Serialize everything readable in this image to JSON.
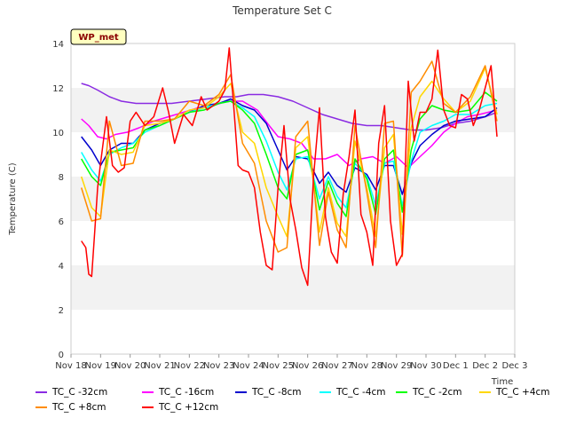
{
  "chart_data": {
    "type": "line",
    "title": "Temperature Set C",
    "xlabel": "Time",
    "ylabel": "Temperature (C)",
    "ylim": [
      0,
      14
    ],
    "xlim": [
      0,
      15
    ],
    "yticks": [
      0,
      2,
      4,
      6,
      8,
      10,
      12,
      14
    ],
    "xtick_labels": [
      "Nov 18",
      "Nov 19",
      "Nov 20",
      "Nov 21",
      "Nov 22",
      "Nov 23",
      "Nov 24",
      "Nov 25",
      "Nov 26",
      "Nov 27",
      "Nov 28",
      "Nov 29",
      "Nov 30",
      "Dec 1",
      "Dec 2",
      "Dec 3"
    ],
    "grid": "horizontal bands",
    "legend_placement": "bottom",
    "annotation": "WP_met",
    "series": [
      {
        "name": "TC_C -32cm",
        "color": "#8a2be2",
        "x": [
          0.35,
          0.6,
          0.9,
          1.3,
          1.7,
          2.2,
          2.8,
          3.4,
          4,
          4.6,
          5.2,
          5.6,
          6,
          6.5,
          7,
          7.5,
          8,
          8.5,
          9,
          9.5,
          10,
          10.5,
          11,
          11.5,
          12,
          12.5,
          13,
          13.5,
          14,
          14.4
        ],
        "y": [
          12.2,
          12.1,
          11.9,
          11.6,
          11.4,
          11.3,
          11.3,
          11.3,
          11.4,
          11.5,
          11.6,
          11.6,
          11.7,
          11.7,
          11.6,
          11.4,
          11.1,
          10.8,
          10.6,
          10.4,
          10.3,
          10.3,
          10.2,
          10.1,
          10.1,
          10.2,
          10.4,
          10.5,
          10.7,
          10.9
        ]
      },
      {
        "name": "TC_C -16cm",
        "color": "#ff00ff",
        "x": [
          0.35,
          0.6,
          0.9,
          1.2,
          1.5,
          1.9,
          2.3,
          2.8,
          3.3,
          3.8,
          4.3,
          4.8,
          5.3,
          5.8,
          6.3,
          6.7,
          7,
          7.4,
          7.8,
          8.2,
          8.6,
          9,
          9.4,
          9.8,
          10.2,
          10.6,
          11,
          11.4,
          11.8,
          12.2,
          12.6,
          13,
          13.4,
          13.8,
          14.4
        ],
        "y": [
          10.6,
          10.3,
          9.8,
          9.7,
          9.9,
          10,
          10.2,
          10.5,
          10.7,
          10.9,
          11.1,
          11.2,
          11.4,
          11.4,
          11,
          10.3,
          9.8,
          9.7,
          9.5,
          8.8,
          8.8,
          9,
          8.5,
          8.8,
          8.9,
          8.6,
          8.9,
          8.4,
          8.9,
          9.4,
          10,
          10.4,
          10.7,
          10.8,
          11
        ]
      },
      {
        "name": "TC_C -8cm",
        "color": "#0000cd",
        "x": [
          0.35,
          0.7,
          1,
          1.3,
          1.7,
          2.1,
          2.5,
          3,
          3.5,
          4,
          4.5,
          5,
          5.4,
          5.8,
          6.2,
          6.6,
          7,
          7.3,
          7.6,
          8,
          8.4,
          8.7,
          9,
          9.3,
          9.6,
          10,
          10.3,
          10.6,
          10.9,
          11.2,
          11.5,
          11.8,
          12.2,
          12.6,
          13,
          13.5,
          14,
          14.4
        ],
        "y": [
          9.8,
          9.2,
          8.5,
          9.2,
          9.5,
          9.5,
          10.1,
          10.4,
          10.6,
          10.9,
          11.2,
          11.3,
          11.5,
          11.2,
          11,
          10.4,
          9.2,
          8.3,
          8.9,
          8.8,
          7.7,
          8.2,
          7.6,
          7.3,
          8.4,
          8.1,
          7.4,
          8.5,
          8.5,
          7.2,
          8.6,
          9.4,
          9.9,
          10.3,
          10.5,
          10.6,
          10.7,
          11.1
        ]
      },
      {
        "name": "TC_C -4cm",
        "color": "#00ffff",
        "x": [
          0.35,
          0.7,
          1,
          1.3,
          1.7,
          2.1,
          2.5,
          3,
          3.5,
          4,
          4.5,
          5,
          5.4,
          5.8,
          6.2,
          6.6,
          7,
          7.3,
          7.6,
          8,
          8.4,
          8.7,
          9,
          9.3,
          9.6,
          10,
          10.3,
          10.6,
          10.9,
          11.2,
          11.5,
          11.8,
          12.2,
          12.6,
          13,
          13.5,
          14,
          14.4
        ],
        "y": [
          9.1,
          8.3,
          7.8,
          9,
          9.3,
          9.5,
          10,
          10.3,
          10.6,
          10.9,
          11.1,
          11.3,
          11.4,
          11.1,
          10.7,
          9.6,
          8.2,
          7.4,
          8.8,
          8.9,
          7,
          8,
          7.1,
          6.6,
          8.6,
          8,
          6.7,
          8.6,
          8.7,
          6.7,
          8.7,
          10,
          10.3,
          10.5,
          10.8,
          10.8,
          11.2,
          11.3
        ]
      },
      {
        "name": "TC_C -2cm",
        "color": "#00ff00",
        "x": [
          0.35,
          0.7,
          1,
          1.3,
          1.7,
          2.1,
          2.5,
          3,
          3.5,
          4,
          4.5,
          5,
          5.4,
          5.8,
          6.2,
          6.6,
          7,
          7.3,
          7.6,
          8,
          8.4,
          8.7,
          9,
          9.3,
          9.6,
          10,
          10.3,
          10.6,
          10.9,
          11.2,
          11.5,
          11.8,
          12.2,
          12.6,
          13,
          13.5,
          14,
          14.4
        ],
        "y": [
          8.8,
          8,
          7.6,
          9.1,
          9.2,
          9.3,
          10.1,
          10.3,
          10.6,
          10.9,
          11,
          11.3,
          11.4,
          11,
          10.4,
          9,
          7.5,
          7,
          9,
          9.2,
          6.5,
          7.8,
          6.8,
          6.2,
          8.8,
          7.9,
          6.3,
          8.8,
          9.2,
          6.4,
          9.2,
          10.6,
          11.2,
          11,
          10.9,
          11,
          11.8,
          11.4
        ]
      },
      {
        "name": "TC_C +4cm",
        "color": "#ffd700",
        "x": [
          0.35,
          0.7,
          1,
          1.3,
          1.7,
          2.1,
          2.5,
          3,
          3.5,
          4,
          4.5,
          5,
          5.4,
          5.8,
          6.2,
          6.6,
          7,
          7.3,
          7.6,
          8,
          8.4,
          8.7,
          9,
          9.3,
          9.6,
          10,
          10.3,
          10.6,
          10.9,
          11.2,
          11.5,
          11.8,
          12.2,
          12.6,
          13,
          13.5,
          14,
          14.4
        ],
        "y": [
          8,
          6.6,
          6.2,
          9.2,
          9,
          9.1,
          10.3,
          10.4,
          10.6,
          11,
          11.1,
          11.6,
          12.2,
          10,
          9.5,
          7.5,
          6.2,
          5.3,
          9.3,
          9.8,
          5.5,
          7.5,
          5.9,
          5.3,
          9.6,
          7.5,
          5.3,
          9.3,
          9.9,
          5.4,
          10.2,
          11.6,
          12.3,
          11.5,
          10.9,
          11.4,
          12.9,
          10.8
        ]
      },
      {
        "name": "TC_C +8cm",
        "color": "#ff8c00",
        "x": [
          0.35,
          0.7,
          1,
          1.3,
          1.7,
          2.1,
          2.5,
          3,
          3.5,
          4,
          4.5,
          5,
          5.4,
          5.8,
          6.2,
          6.6,
          7,
          7.3,
          7.6,
          8,
          8.4,
          8.7,
          9,
          9.3,
          9.6,
          10,
          10.3,
          10.6,
          10.9,
          11.2,
          11.5,
          11.8,
          12.2,
          12.6,
          13,
          13.5,
          14,
          14.4
        ],
        "y": [
          7.5,
          6,
          6.1,
          10.5,
          8.5,
          8.6,
          10.5,
          10.5,
          10.6,
          11.4,
          11.2,
          11.7,
          12.6,
          9.5,
          8.6,
          6,
          4.6,
          4.8,
          9.8,
          10.5,
          4.9,
          7.3,
          5.6,
          4.8,
          10.3,
          7.3,
          4.8,
          10.4,
          10.5,
          4.4,
          11.8,
          12.3,
          13.2,
          11.3,
          10.9,
          11.6,
          13,
          10.5
        ]
      },
      {
        "name": "TC_C +12cm",
        "color": "#ff0000",
        "x": [
          0.35,
          0.5,
          0.6,
          0.7,
          0.8,
          0.9,
          1,
          1.2,
          1.4,
          1.6,
          1.8,
          2,
          2.2,
          2.5,
          2.8,
          3.1,
          3.3,
          3.5,
          3.8,
          4.1,
          4.4,
          4.6,
          4.8,
          5,
          5.2,
          5.35,
          5.5,
          5.65,
          5.8,
          6,
          6.2,
          6.4,
          6.6,
          6.8,
          7,
          7.2,
          7.4,
          7.6,
          7.8,
          8,
          8.2,
          8.4,
          8.6,
          8.8,
          9,
          9.2,
          9.4,
          9.6,
          9.8,
          10,
          10.2,
          10.4,
          10.6,
          10.8,
          11,
          11.2,
          11.4,
          11.6,
          11.8,
          12,
          12.2,
          12.4,
          12.6,
          12.8,
          13,
          13.2,
          13.4,
          13.6,
          13.8,
          14,
          14.2,
          14.4
        ],
        "y": [
          5.1,
          4.8,
          3.6,
          3.5,
          5.5,
          7.5,
          8.6,
          10.7,
          8.5,
          8.2,
          8.4,
          10.5,
          10.9,
          10.3,
          10.7,
          12,
          10.9,
          9.5,
          10.8,
          10.3,
          11.6,
          11,
          11.2,
          11.4,
          11.9,
          13.8,
          11.2,
          8.5,
          8.3,
          8.2,
          7.5,
          5.5,
          4,
          3.8,
          7.5,
          10.3,
          7,
          5.6,
          3.9,
          3.1,
          8,
          11.1,
          6.2,
          4.6,
          4.1,
          7.2,
          8.9,
          11,
          6.3,
          5.5,
          4,
          9.5,
          11.2,
          6,
          4,
          4.5,
          12.3,
          9.6,
          10.9,
          10.9,
          11.5,
          13.7,
          11,
          10.3,
          10.2,
          11.7,
          11.5,
          10.3,
          11,
          12,
          13,
          9.8
        ]
      }
    ]
  }
}
